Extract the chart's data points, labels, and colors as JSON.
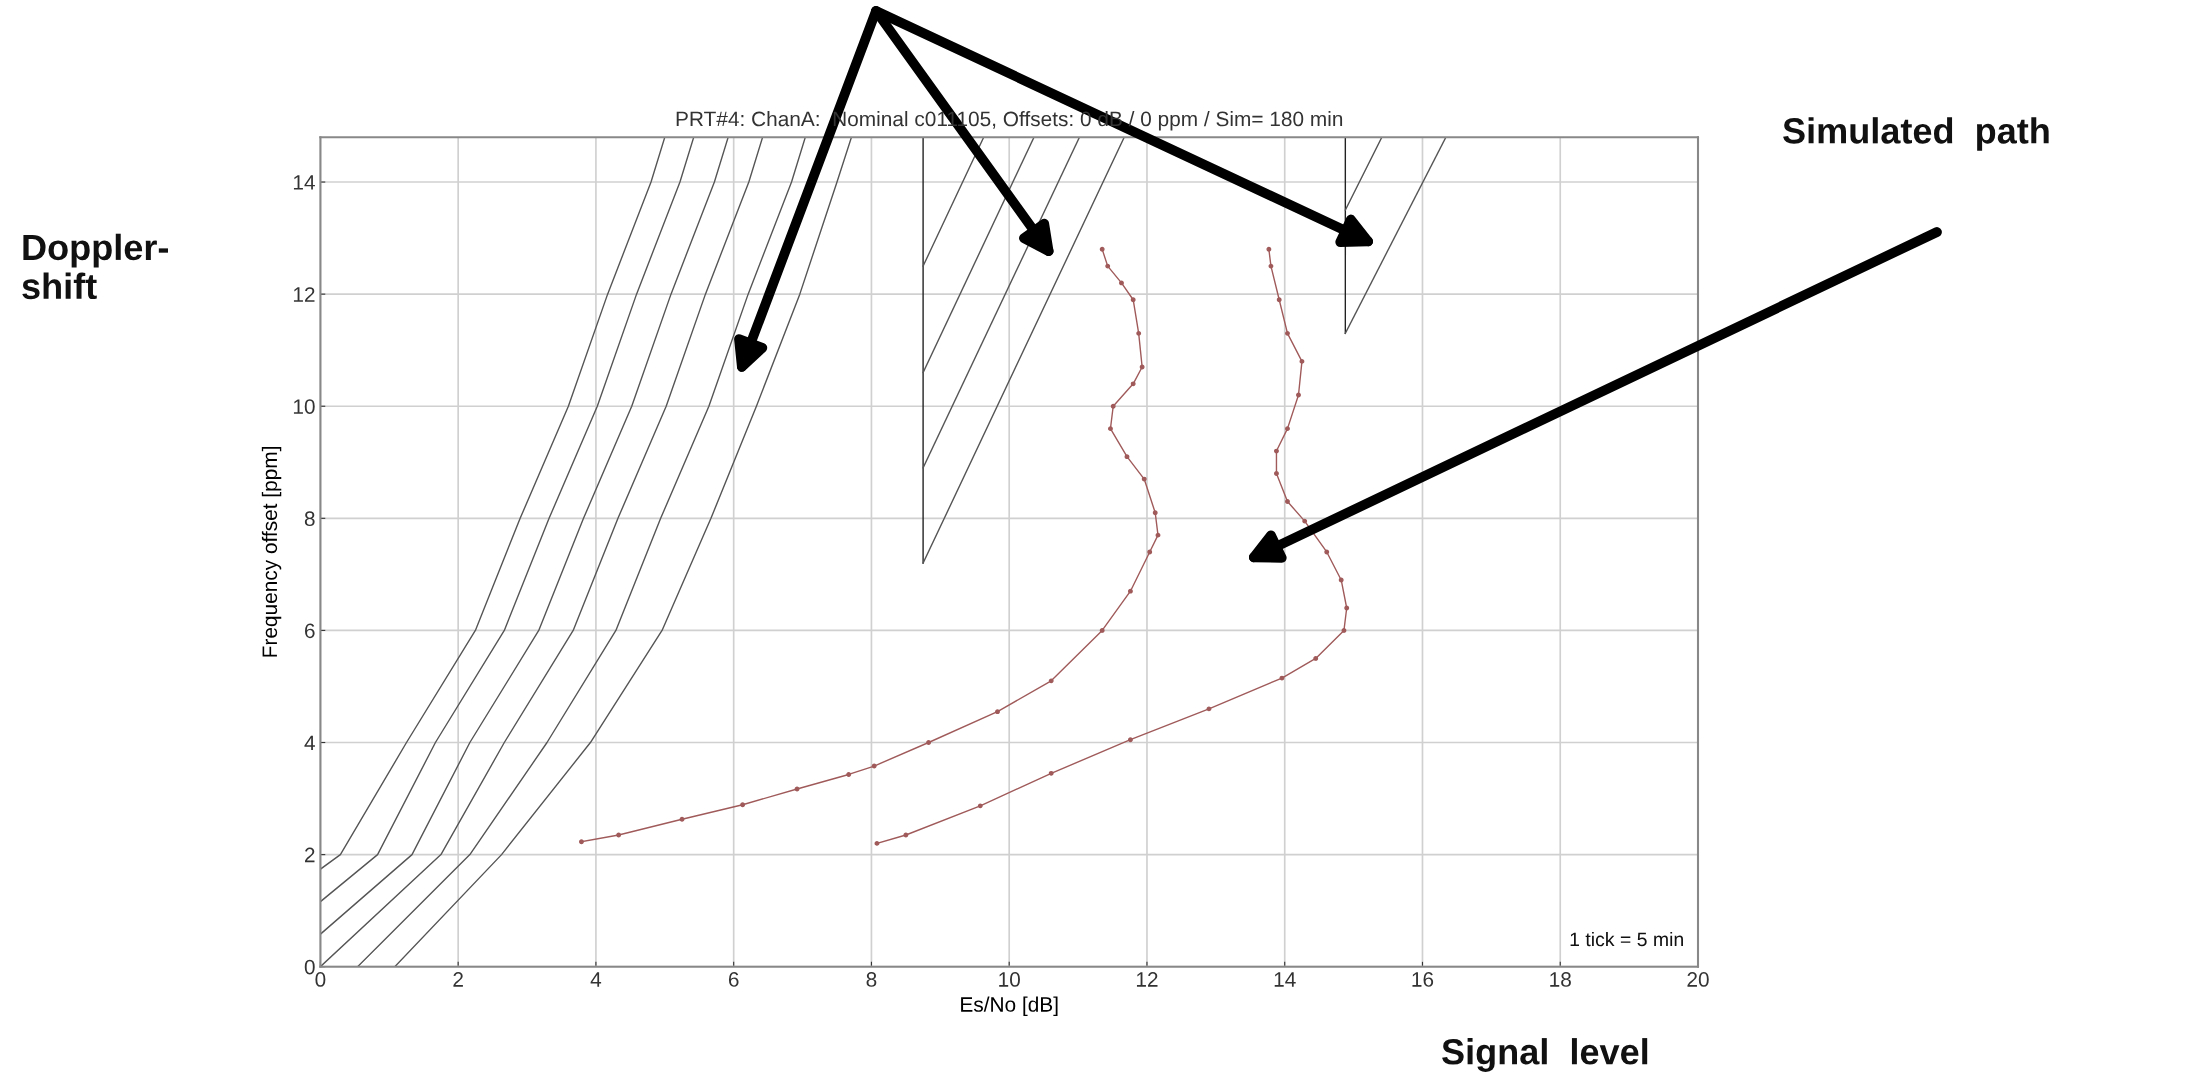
{
  "chart_data": {
    "type": "line",
    "title": "PRT#4: ChanA:  Nominal c011105, Offsets: 0 dB / 0 ppm / Sim= 180 min",
    "xlabel": "Es/No [dB]",
    "ylabel": "Frequency offset [ppm]",
    "xlim": [
      0,
      20
    ],
    "ylim": [
      0,
      14.8
    ],
    "xticks": [
      0,
      2,
      4,
      6,
      8,
      10,
      12,
      14,
      16,
      18,
      20
    ],
    "yticks": [
      0,
      2,
      4,
      6,
      8,
      10,
      12,
      14
    ],
    "grid": true,
    "legend": false,
    "marker": "none",
    "line_style": "solid",
    "annotations": [
      "1 tick = 5 min",
      "Doppler-\nshift",
      "Simulated  path",
      "Signal  level"
    ],
    "series": [
      {
        "color": "#555555",
        "x": [
          0,
          0.29,
          1.25,
          2.25,
          2.9,
          3.6,
          4.17,
          4.8,
          5.0
        ],
        "values": [
          1.74,
          2,
          4,
          6,
          8,
          10,
          12,
          14,
          14.8
        ]
      },
      {
        "color": "#555555",
        "x": [
          0,
          0.83,
          1.67,
          2.67,
          3.32,
          4.02,
          4.59,
          5.22,
          5.42
        ],
        "values": [
          1.16,
          2,
          4,
          6,
          8,
          10,
          12,
          14,
          14.8
        ]
      },
      {
        "color": "#555555",
        "x": [
          0,
          1.33,
          2.17,
          3.17,
          3.82,
          4.52,
          5.09,
          5.72,
          5.92
        ],
        "values": [
          0.58,
          2,
          4,
          6,
          8,
          10,
          12,
          14,
          14.8
        ]
      },
      {
        "color": "#555555",
        "x": [
          0,
          1.75,
          2.67,
          3.67,
          4.32,
          5.02,
          5.59,
          6.22,
          6.42
        ],
        "values": [
          0,
          2,
          4,
          6,
          8,
          10,
          12,
          14,
          14.8
        ]
      },
      {
        "color": "#555555",
        "x": [
          0.54,
          2.17,
          3.29,
          4.29,
          4.94,
          5.64,
          6.21,
          6.84,
          7.04
        ],
        "values": [
          0,
          2,
          4,
          6,
          8,
          10,
          12,
          14,
          14.8
        ]
      },
      {
        "color": "#555555",
        "x": [
          1.08,
          2.63,
          3.92,
          4.96,
          5.67,
          6.33,
          6.96,
          7.5,
          7.71
        ],
        "values": [
          0,
          2,
          4,
          6,
          8,
          10,
          12,
          14,
          14.8
        ]
      },
      {
        "color": "#222222",
        "x": [
          8.75,
          8.75
        ],
        "values": [
          14.8,
          7.2
        ]
      },
      {
        "color": "#555555",
        "x": [
          8.75,
          9.63
        ],
        "values": [
          12.5,
          14.8
        ]
      },
      {
        "color": "#555555",
        "x": [
          8.75,
          10.36
        ],
        "values": [
          10.6,
          14.8
        ]
      },
      {
        "color": "#555555",
        "x": [
          8.75,
          11.02
        ],
        "values": [
          8.9,
          14.8
        ]
      },
      {
        "color": "#555555",
        "x": [
          8.75,
          11.67
        ],
        "values": [
          7.2,
          14.8
        ]
      },
      {
        "color": "#222222",
        "x": [
          14.88,
          14.88
        ],
        "values": [
          14.8,
          11.3
        ]
      },
      {
        "color": "#555555",
        "x": [
          14.88,
          15.41
        ],
        "values": [
          13.5,
          14.8
        ]
      },
      {
        "color": "#555555",
        "x": [
          14.88,
          16.34
        ],
        "values": [
          11.3,
          14.8
        ]
      },
      {
        "color": "#a05a5a",
        "marker": "circle",
        "x": [
          3.79,
          4.33,
          5.25,
          6.13,
          6.92,
          7.67,
          8.04,
          8.83,
          9.83,
          10.61,
          11.35,
          11.76,
          12.04,
          12.16,
          12.12,
          11.96,
          11.71,
          11.47,
          11.51,
          11.8,
          11.93,
          11.88,
          11.8,
          11.63,
          11.43,
          11.35
        ],
        "values": [
          2.23,
          2.35,
          2.63,
          2.89,
          3.17,
          3.43,
          3.58,
          4.0,
          4.55,
          5.1,
          6.0,
          6.7,
          7.4,
          7.7,
          8.1,
          8.7,
          9.1,
          9.6,
          10.0,
          10.4,
          10.7,
          11.3,
          11.9,
          12.2,
          12.5,
          12.8
        ]
      },
      {
        "color": "#a05a5a",
        "marker": "circle",
        "x": [
          8.08,
          8.5,
          9.58,
          10.61,
          11.76,
          12.9,
          13.96,
          14.45,
          14.86,
          14.9,
          14.82,
          14.61,
          14.29,
          14.04,
          13.88,
          13.88,
          14.04,
          14.2,
          14.25,
          14.04,
          13.92,
          13.8,
          13.77
        ],
        "values": [
          2.2,
          2.35,
          2.87,
          3.45,
          4.05,
          4.6,
          5.15,
          5.5,
          6.0,
          6.4,
          6.9,
          7.4,
          7.95,
          8.3,
          8.8,
          9.2,
          9.6,
          10.2,
          10.8,
          11.3,
          11.9,
          12.5,
          12.8
        ]
      }
    ]
  }
}
